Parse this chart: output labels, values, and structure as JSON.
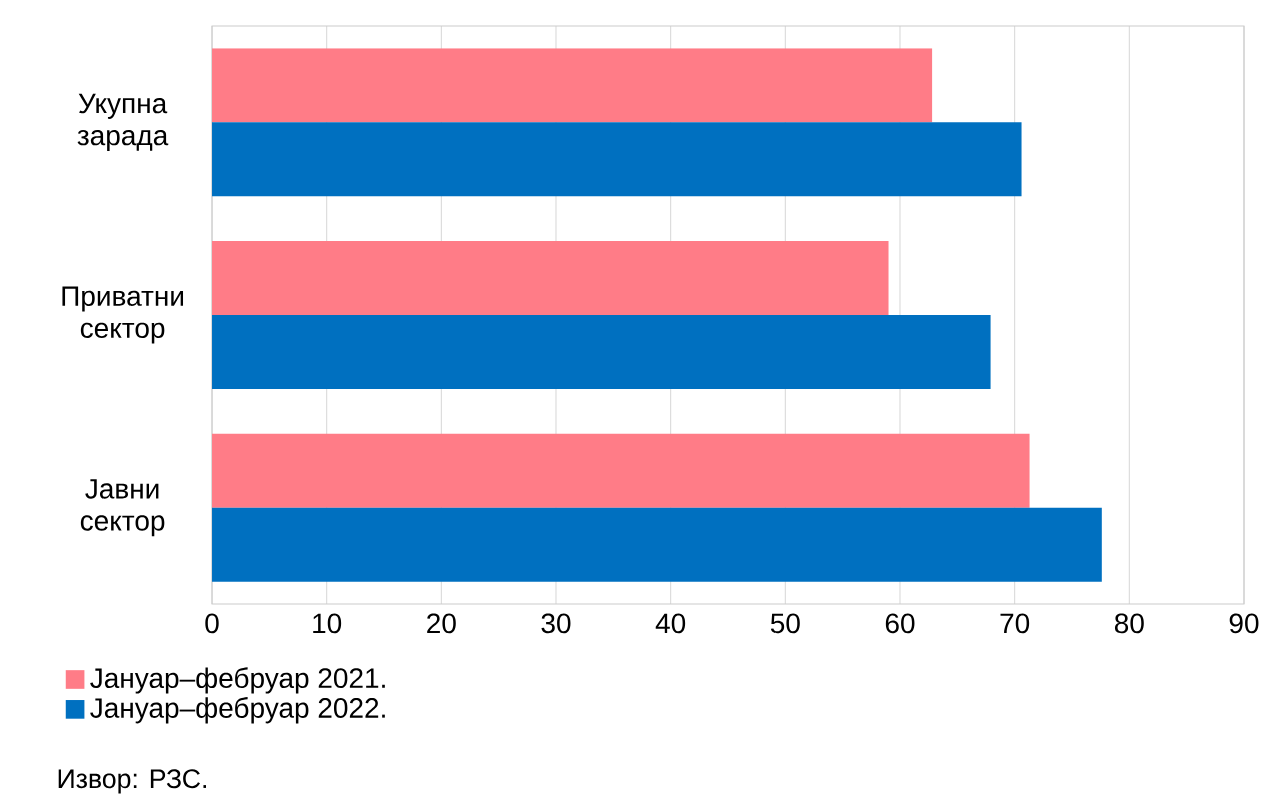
{
  "chart_data": {
    "type": "bar",
    "orientation": "horizontal",
    "categories": [
      "Укупна зарада",
      "Приватни сектор",
      "Јавни сектор"
    ],
    "series": [
      {
        "name": "Јануар–фебруар 2021.",
        "color": "#ff7c87",
        "values": [
          62.8,
          59.0,
          71.3
        ]
      },
      {
        "name": "Јануар–фебруар 2022.",
        "color": "#0070c0",
        "values": [
          70.6,
          67.9,
          77.6
        ]
      }
    ],
    "xlim": [
      0,
      90
    ],
    "xticks": [
      0,
      10,
      20,
      30,
      40,
      50,
      60,
      70,
      80,
      90
    ],
    "grid": "x",
    "legend": "bottom left",
    "annotations": [
      "Извор: РЗС."
    ]
  }
}
